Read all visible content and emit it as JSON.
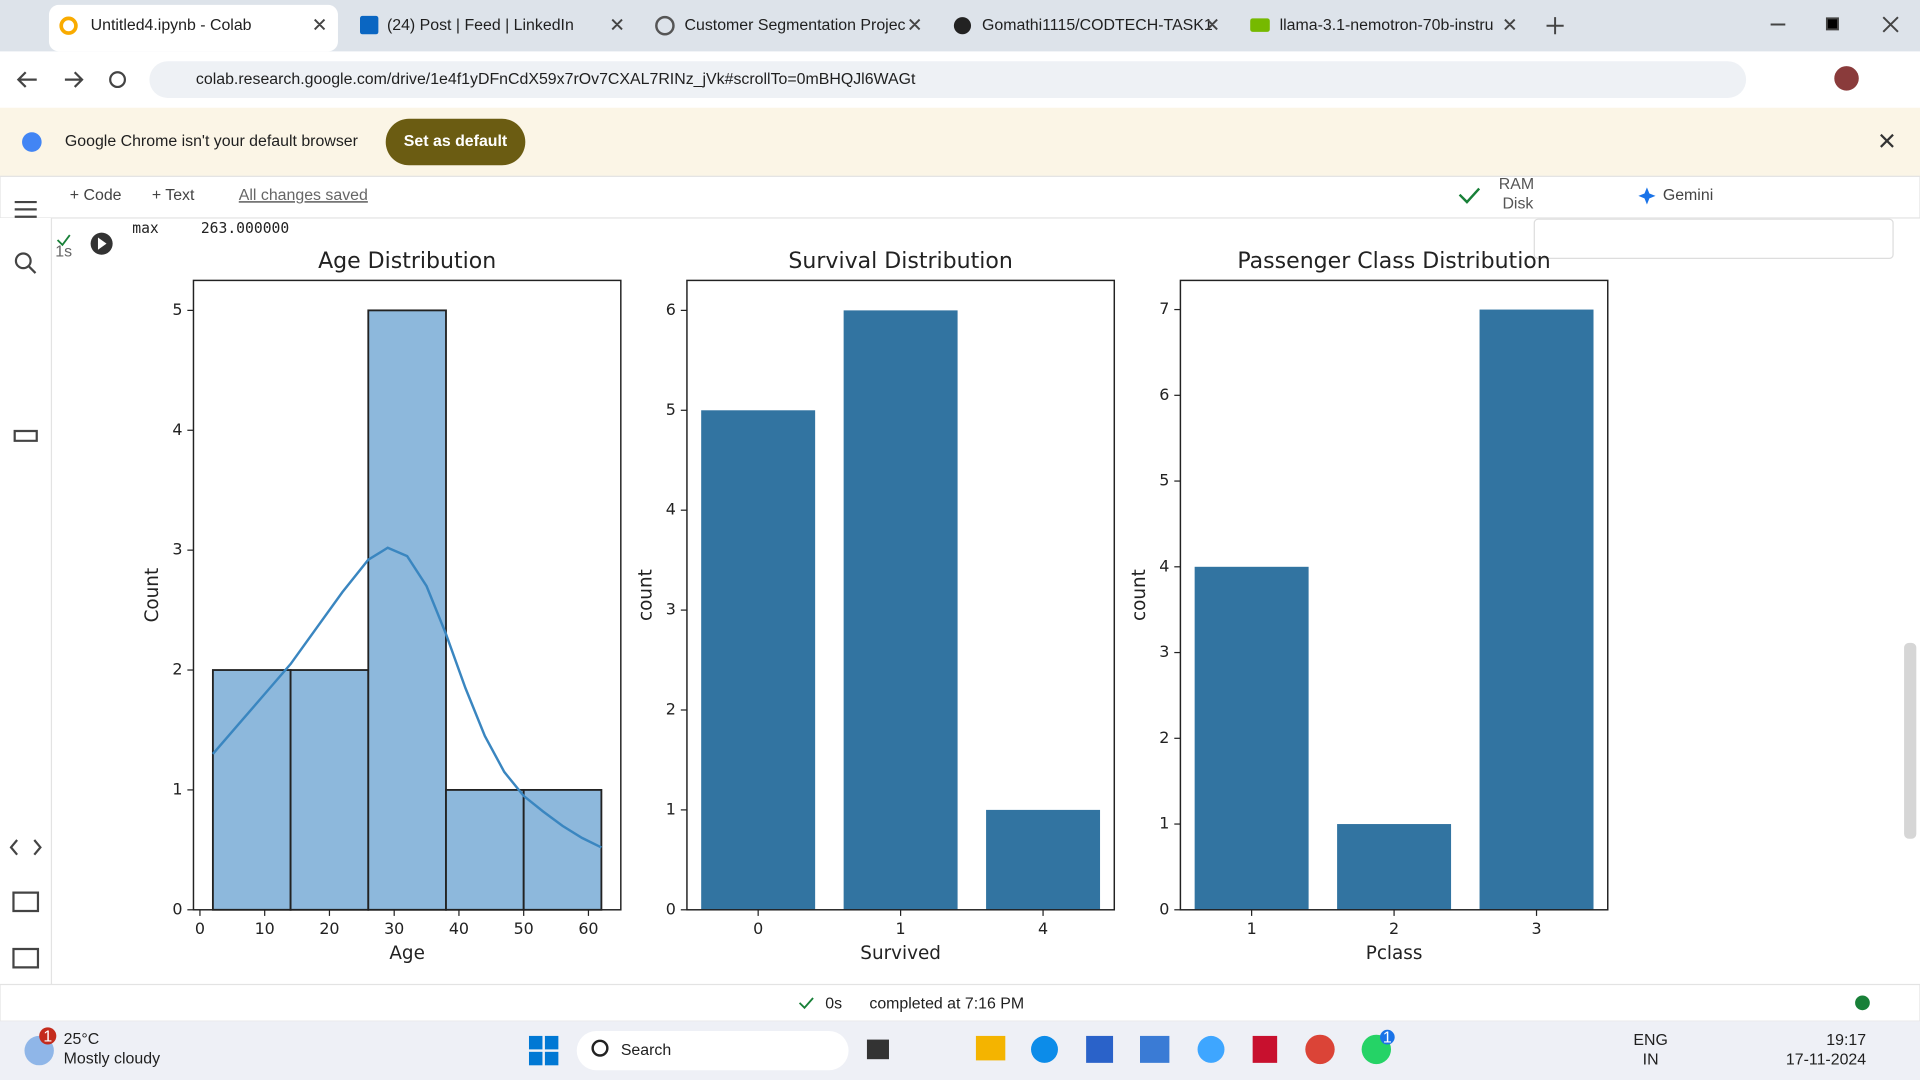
{
  "browser": {
    "tabs": [
      "Untitled4.ipynb - Colab",
      "(24) Post | Feed | LinkedIn",
      "Customer Segmentation Projec",
      "Gomathi1115/CODTECH-TASK1",
      "llama-3.1-nemotron-70b-instru"
    ],
    "url": "colab.research.google.com/drive/1e4f1yDFnCdX59x7rOv7CXAL7RINz_jVk#scrollTo=0mBHQJl6WAGt",
    "banner": "Google Chrome isn't your default browser",
    "banner_button": "Set as default"
  },
  "colab": {
    "toolbar": [
      "+ Code",
      "+ Text"
    ],
    "save_status": "All changes saved",
    "ram": "RAM",
    "disk": "Disk",
    "gemini": "Gemini",
    "exec_time": "1s",
    "output_key": "max",
    "output_value": "263.000000",
    "status_time": "0s",
    "status": "completed at 7:16 PM"
  },
  "chart_data": [
    {
      "type": "histogram",
      "title": "Age Distribution",
      "x_label": "Age",
      "y_label": "Count",
      "bins": [
        2,
        14,
        26,
        38,
        50,
        62
      ],
      "values": [
        2,
        2,
        5,
        1,
        1
      ],
      "color": "#8db8dc",
      "edge_color": "#222222",
      "kde": {
        "x": [
          2,
          6,
          10,
          14,
          18,
          22,
          26,
          29,
          32,
          35,
          38,
          41,
          44,
          47,
          50,
          53,
          56,
          59,
          62
        ],
        "values": [
          1.3,
          1.55,
          1.8,
          2.05,
          2.35,
          2.65,
          2.92,
          3.02,
          2.95,
          2.7,
          2.3,
          1.85,
          1.45,
          1.15,
          0.95,
          0.82,
          0.7,
          0.6,
          0.52
        ],
        "color": "#3a86c0"
      },
      "xlim": [
        -1,
        65
      ],
      "ylim": [
        0,
        5.25
      ],
      "xticks": [
        0,
        10,
        20,
        30,
        40,
        50,
        60
      ],
      "yticks": [
        0,
        1,
        2,
        3,
        4,
        5
      ]
    },
    {
      "type": "bar",
      "title": "Survival Distribution",
      "x_label": "Survived",
      "y_label": "count",
      "categories": [
        "0",
        "1",
        "4"
      ],
      "values": [
        5,
        6,
        1
      ],
      "color": "#3274a1",
      "ylim": [
        0,
        6.3
      ],
      "yticks": [
        0,
        1,
        2,
        3,
        4,
        5,
        6
      ]
    },
    {
      "type": "bar",
      "title": "Passenger Class Distribution",
      "x_label": "Pclass",
      "y_label": "count",
      "categories": [
        "1",
        "2",
        "3"
      ],
      "values": [
        4,
        1,
        7
      ],
      "color": "#3274a1",
      "ylim": [
        0,
        7.34
      ],
      "yticks": [
        0,
        1,
        2,
        3,
        4,
        5,
        6,
        7
      ]
    }
  ],
  "taskbar": {
    "badge": "1",
    "temp": "25°C",
    "weather": "Mostly cloudy",
    "search": "Search",
    "lang": "ENG",
    "region": "IN",
    "time": "19:17",
    "date": "17-11-2024",
    "whatsapp_badge": "1"
  }
}
